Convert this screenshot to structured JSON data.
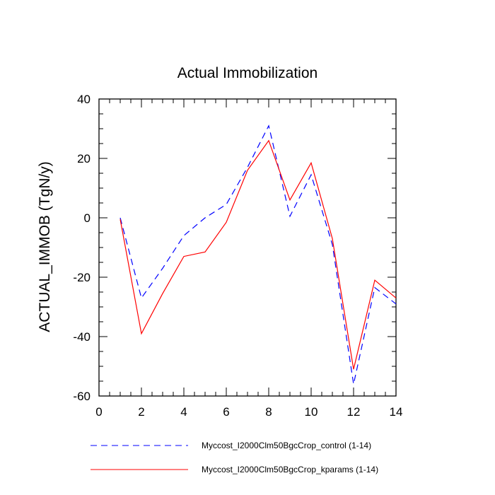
{
  "chart_data": {
    "type": "line",
    "title": "Actual Immobilization",
    "xlabel": "",
    "ylabel": "ACTUAL_IMMOB  (TgN/y)",
    "xlim": [
      0,
      14
    ],
    "ylim": [
      -60,
      40
    ],
    "xticks": [
      0,
      2,
      4,
      6,
      8,
      10,
      12,
      14
    ],
    "yticks": [
      -60,
      -40,
      -20,
      0,
      20,
      40
    ],
    "xtick_labels": [
      "0",
      "2",
      "4",
      "6",
      "8",
      "10",
      "12",
      "14"
    ],
    "ytick_labels": [
      "-60",
      "-40",
      "-20",
      "0",
      "20",
      "40"
    ],
    "grid": false,
    "legend_position": "bottom",
    "series": [
      {
        "name": "Myccost_I2000Clm50BgcCrop_control (1-14)",
        "color": "#0000ff",
        "style": "dashed",
        "x": [
          1,
          2,
          3,
          4,
          5,
          6,
          7,
          8,
          9,
          10,
          11,
          12,
          13,
          14
        ],
        "values": [
          0,
          -27,
          -17,
          -6,
          0,
          4.5,
          17,
          31,
          0.5,
          14.5,
          -9,
          -56,
          -23.5,
          -29
        ]
      },
      {
        "name": "Myccost_I2000Clm50BgcCrop_kparams (1-14)",
        "color": "#ff0000",
        "style": "solid",
        "x": [
          1,
          2,
          3,
          4,
          5,
          6,
          7,
          8,
          9,
          10,
          11,
          12,
          13,
          14
        ],
        "values": [
          -0.5,
          -39,
          -25.5,
          -13,
          -11.5,
          -1.5,
          16,
          26,
          6,
          18.5,
          -7,
          -51,
          -21,
          -27
        ]
      }
    ]
  }
}
